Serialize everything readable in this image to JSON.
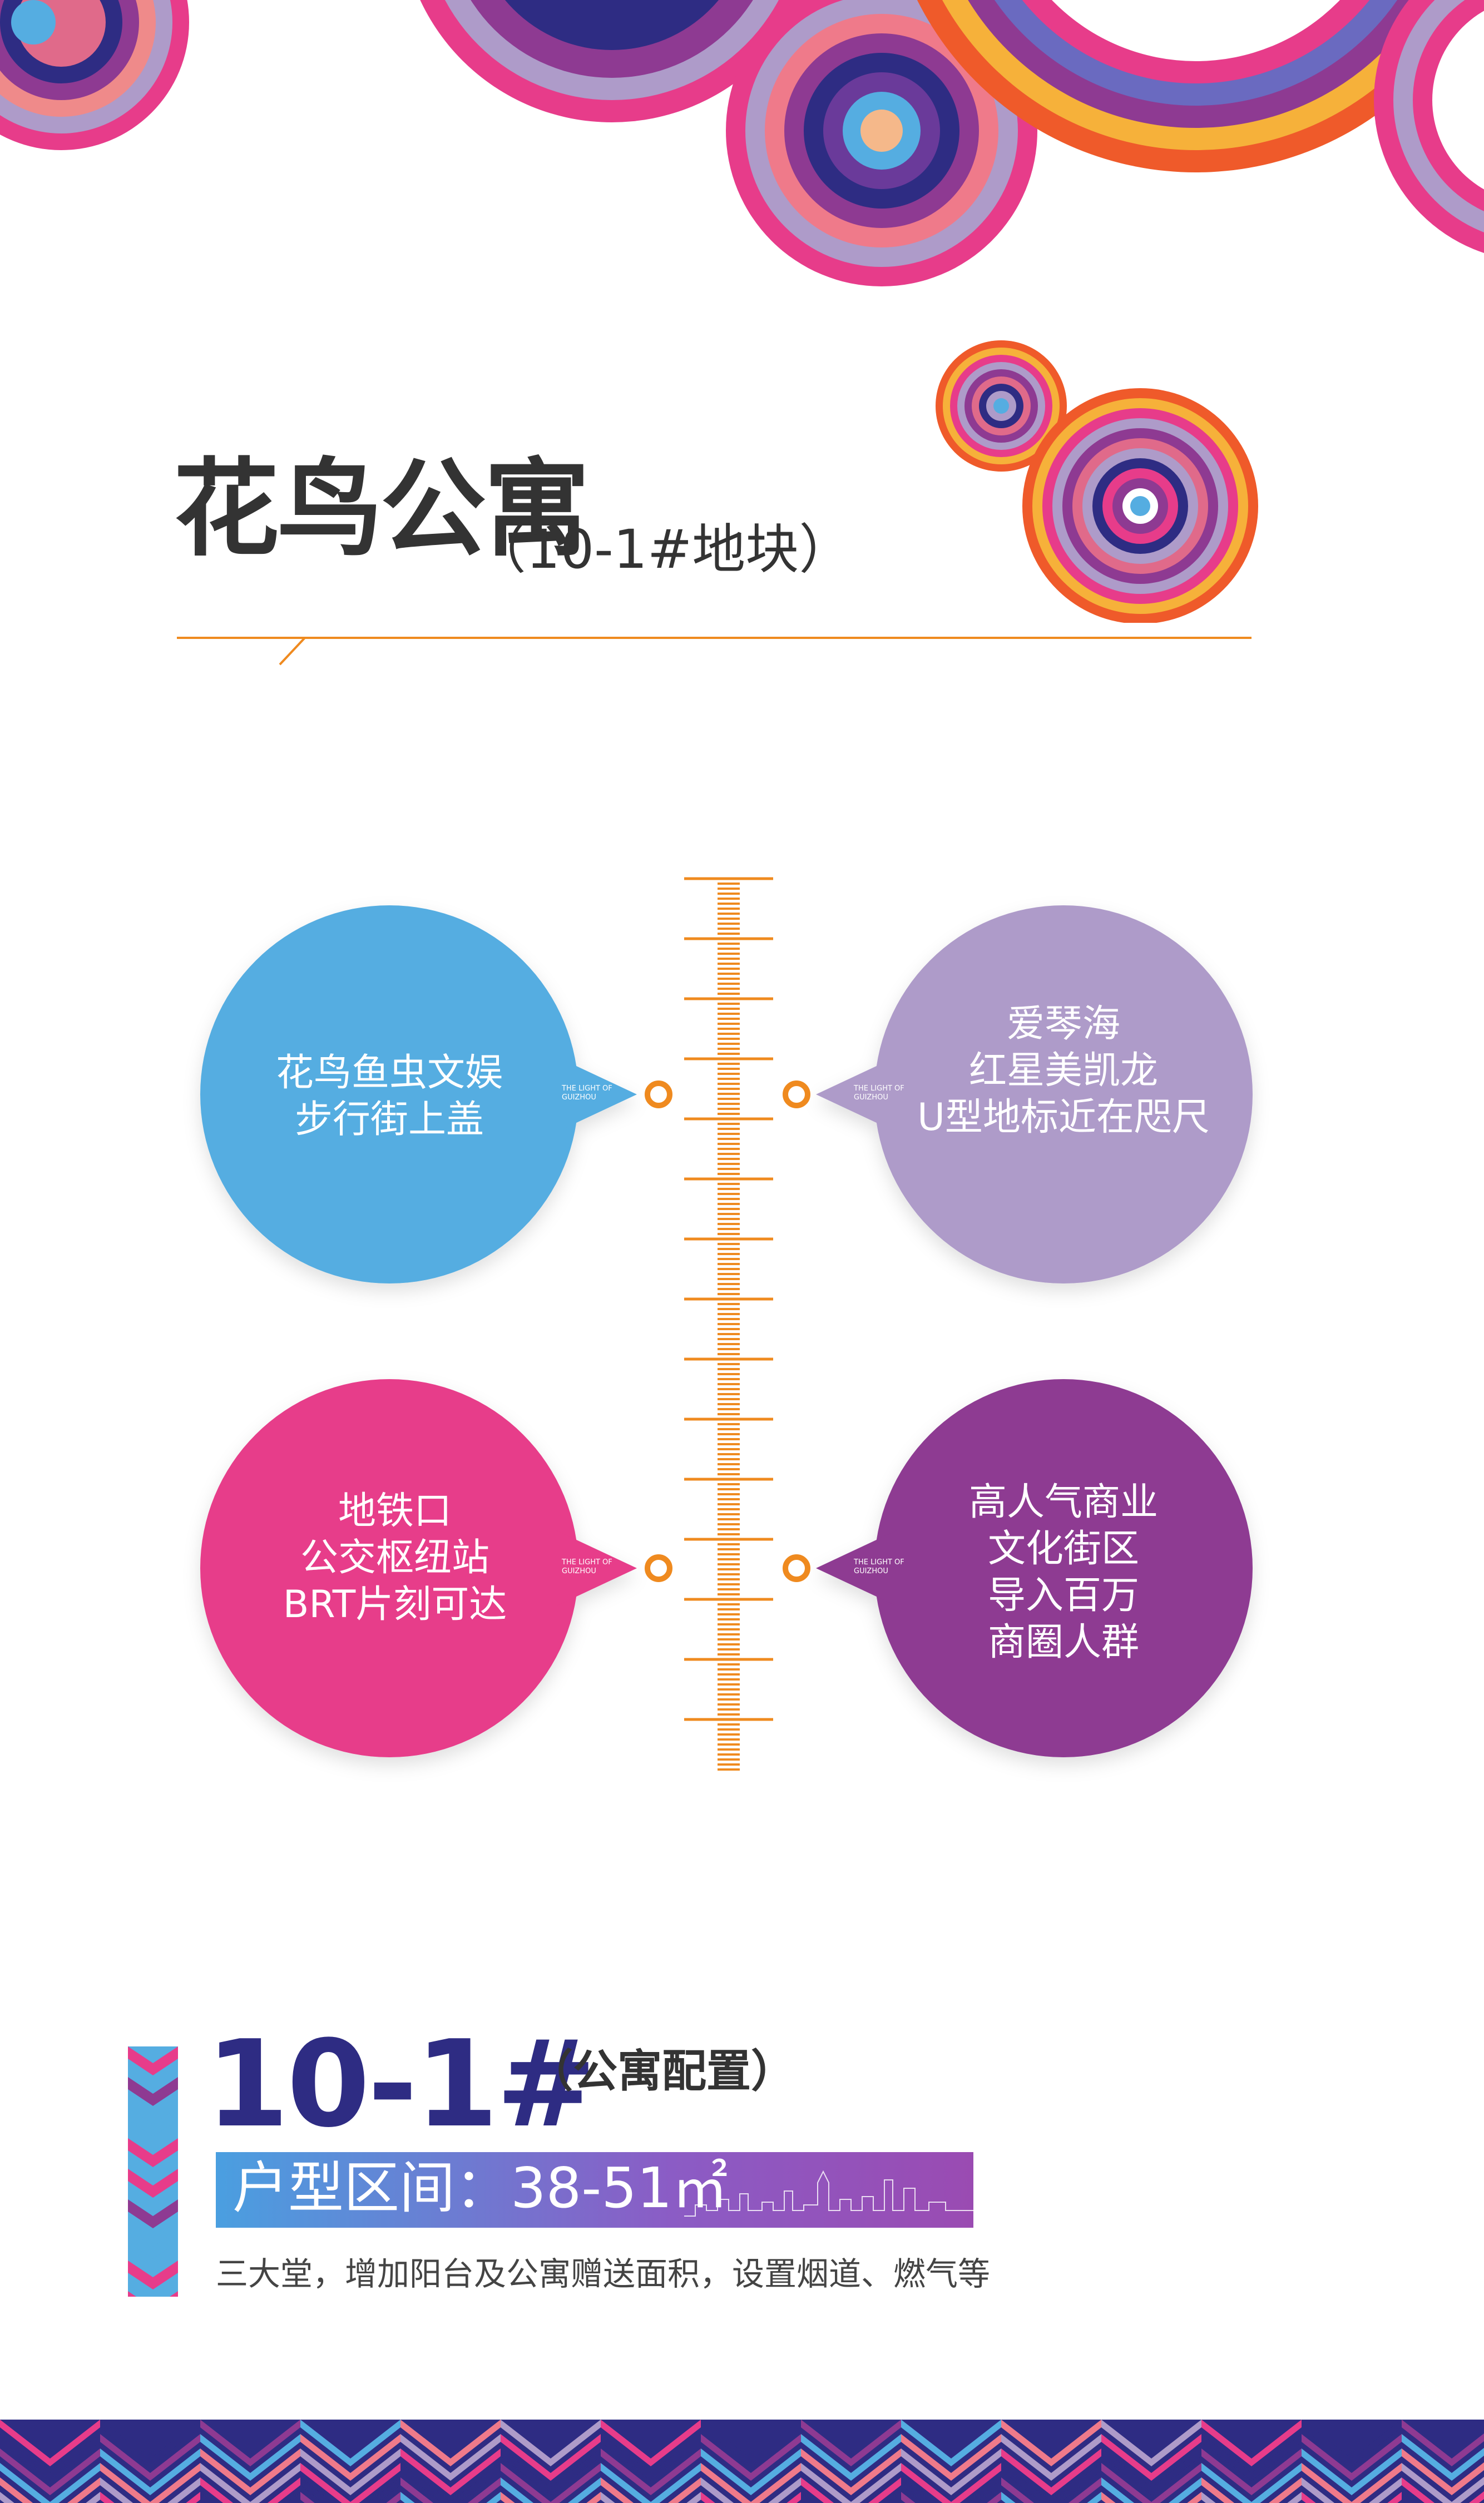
{
  "title": {
    "main": "花鸟公寓",
    "sub": "（10-1#地块）"
  },
  "bubbles": [
    {
      "lines": [
        "花鸟鱼虫文娱",
        "步行街上盖"
      ],
      "color": "#55ade1",
      "tag": [
        "THE LIGHT OF",
        "GUIZHOU"
      ]
    },
    {
      "lines": [
        "爱琴海",
        "红星美凯龙",
        "U型地标近在咫尺"
      ],
      "color": "#ae9bc9",
      "tag": [
        "THE LIGHT OF",
        "GUIZHOU"
      ]
    },
    {
      "lines": [
        "地铁口",
        "公交枢纽站",
        "BRT片刻可达"
      ],
      "color": "#e73c8a",
      "tag": [
        "THE LIGHT OF",
        "GUIZHOU"
      ]
    },
    {
      "lines": [
        "高人气商业",
        "文化街区",
        "导入百万",
        "商圈人群"
      ],
      "color": "#8e3a92",
      "tag": [
        "THE LIGHT OF",
        "GUIZHOU"
      ]
    }
  ],
  "config": {
    "number": "10-1#",
    "label": "（公寓配置）",
    "range": "户型区间：38-51㎡",
    "description": "三大堂，增加阳台及公寓赠送面积，设置烟道、燃气等"
  },
  "colors": {
    "accent_orange": "#ef8a1f",
    "navy": "#2e2c83",
    "pink": "#e73c8a",
    "purple": "#8e3a92",
    "blue": "#55ade1",
    "lavender": "#ae9bc9"
  }
}
